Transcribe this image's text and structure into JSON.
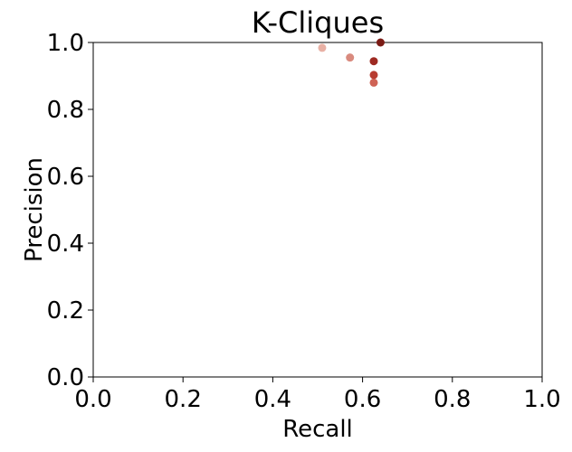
{
  "chart_data": {
    "type": "scatter",
    "title": "K-Cliques",
    "xlabel": "Recall",
    "ylabel": "Precision",
    "xlim": [
      0.0,
      1.0
    ],
    "ylim": [
      0.0,
      1.0
    ],
    "xticks": [
      "0.0",
      "0.2",
      "0.4",
      "0.6",
      "0.8",
      "1.0"
    ],
    "yticks": [
      "0.0",
      "0.2",
      "0.4",
      "0.6",
      "0.8",
      "1.0"
    ],
    "grid": false,
    "points": [
      {
        "x": 0.51,
        "y": 0.984,
        "color": "#e8b0a4"
      },
      {
        "x": 0.572,
        "y": 0.955,
        "color": "#d98a7e"
      },
      {
        "x": 0.625,
        "y": 0.88,
        "color": "#cf6355"
      },
      {
        "x": 0.625,
        "y": 0.903,
        "color": "#b83c30"
      },
      {
        "x": 0.625,
        "y": 0.944,
        "color": "#9e2a22"
      },
      {
        "x": 0.64,
        "y": 1.0,
        "color": "#7a1a14"
      }
    ]
  }
}
